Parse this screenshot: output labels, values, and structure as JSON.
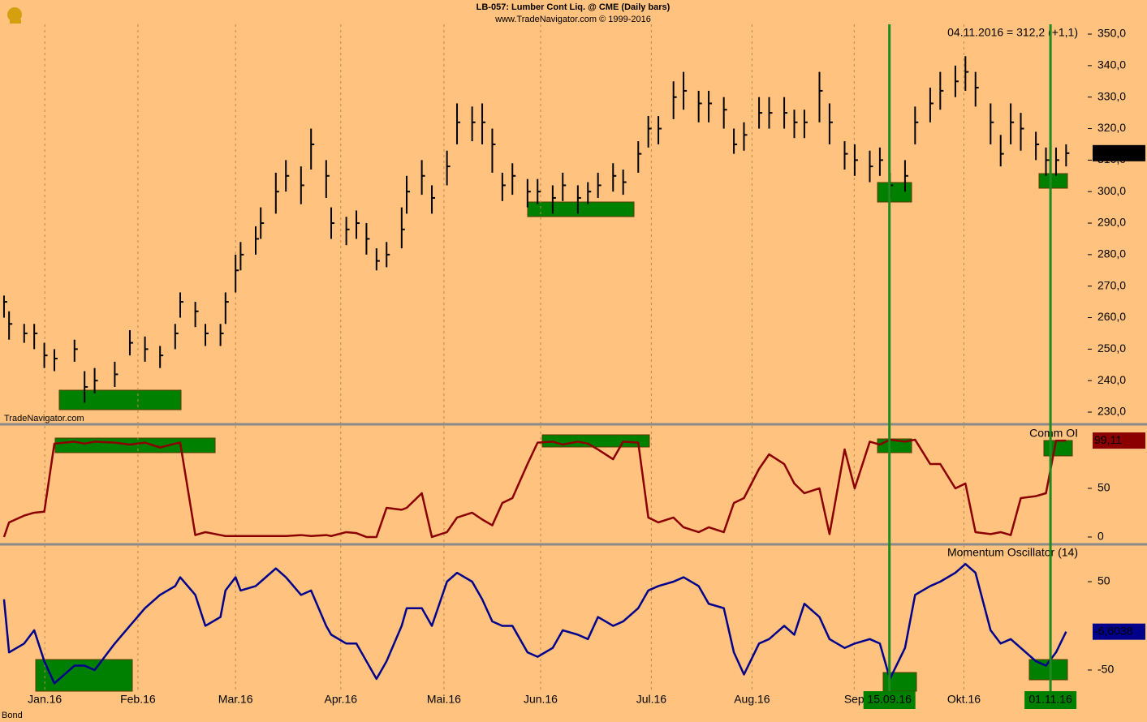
{
  "header": {
    "title": "LB-057:  Lumber Cont Liq. @ CME  (Daily bars)",
    "subtitle": "www.TradeNavigator.com © 1999-2016",
    "source": "TradeNavigator.com",
    "footer": "Bond"
  },
  "chart_data": [
    {
      "type": "ohlc",
      "annotation": "04.11.2016 = 312,2 (+1,1)",
      "color": "#000000",
      "x": [
        1,
        2,
        5,
        7,
        9,
        11,
        15,
        17,
        19,
        23,
        26,
        29,
        32,
        35,
        36,
        39,
        41,
        44,
        45,
        47,
        48,
        51,
        52,
        55,
        57,
        60,
        62,
        65,
        66,
        69,
        71,
        73,
        75,
        77,
        80,
        81,
        84,
        86,
        89,
        91,
        94,
        96,
        98,
        100,
        102,
        105,
        107,
        110,
        112,
        115,
        117,
        119,
        122,
        124,
        127,
        129,
        131,
        134,
        136,
        139,
        141,
        144,
        146,
        148,
        151,
        153,
        156,
        158,
        160,
        163,
        165,
        168,
        170,
        173,
        175,
        177,
        180,
        182,
        185,
        187,
        190,
        192,
        194,
        197,
        199,
        201,
        203,
        206,
        208,
        210,
        212
      ],
      "high": [
        267,
        262,
        258,
        258,
        252,
        250,
        253,
        243,
        244,
        246,
        256,
        254,
        251,
        258,
        268,
        265,
        258,
        258,
        268,
        280,
        284,
        289,
        295,
        306,
        310,
        308,
        320,
        310,
        295,
        292,
        294,
        290,
        282,
        284,
        295,
        305,
        310,
        302,
        313,
        328,
        327,
        328,
        320,
        306,
        309,
        304,
        304,
        302,
        306,
        302,
        303,
        306,
        309,
        307,
        316,
        324,
        324,
        335,
        338,
        332,
        332,
        330,
        320,
        322,
        330,
        330,
        330,
        326,
        326,
        338,
        328,
        316,
        315,
        313,
        314,
        306,
        310,
        327,
        333,
        338,
        340,
        343,
        338,
        328,
        318,
        328,
        325,
        319,
        314,
        314,
        315
      ],
      "low": [
        260,
        253,
        252,
        250,
        244,
        243,
        246,
        233,
        236,
        238,
        248,
        246,
        244,
        250,
        260,
        257,
        251,
        251,
        258,
        268,
        275,
        280,
        285,
        293,
        300,
        296,
        307,
        298,
        285,
        283,
        285,
        280,
        275,
        276,
        282,
        293,
        299,
        293,
        302,
        315,
        316,
        315,
        306,
        297,
        299,
        295,
        296,
        293,
        297,
        293,
        296,
        298,
        300,
        299,
        306,
        314,
        315,
        323,
        326,
        322,
        322,
        320,
        312,
        313,
        320,
        320,
        320,
        317,
        317,
        322,
        315,
        307,
        305,
        303,
        305,
        298,
        300,
        315,
        322,
        326,
        330,
        332,
        327,
        315,
        308,
        315,
        313,
        310,
        305,
        305,
        308
      ],
      "close": [
        265,
        258,
        255,
        255,
        248,
        247,
        250,
        238,
        240,
        242,
        252,
        250,
        248,
        255,
        265,
        262,
        255,
        255,
        265,
        275,
        280,
        285,
        290,
        300,
        305,
        302,
        315,
        305,
        290,
        288,
        290,
        285,
        278,
        280,
        288,
        300,
        305,
        298,
        308,
        322,
        322,
        322,
        315,
        302,
        305,
        300,
        300,
        298,
        302,
        298,
        300,
        302,
        305,
        303,
        312,
        320,
        320,
        330,
        332,
        328,
        328,
        326,
        315,
        318,
        325,
        325,
        325,
        322,
        322,
        332,
        322,
        312,
        310,
        308,
        310,
        302,
        305,
        322,
        328,
        332,
        335,
        338,
        333,
        322,
        312,
        322,
        320,
        315,
        310,
        310,
        312.2
      ],
      "last_label": {
        "value": 312.2,
        "label": "312,2"
      },
      "xlim": [
        0.2,
        216.3
      ],
      "ylim": [
        226.4,
        353.1
      ],
      "yticks": [
        {
          "value": 230,
          "label": "230,0"
        },
        {
          "value": 240,
          "label": "240,0"
        },
        {
          "value": 250,
          "label": "250,0"
        },
        {
          "value": 260,
          "label": "260,0"
        },
        {
          "value": 270,
          "label": "270,0"
        },
        {
          "value": 280,
          "label": "280,0"
        },
        {
          "value": 290,
          "label": "290,0"
        },
        {
          "value": 300,
          "label": "300,0"
        },
        {
          "value": 310,
          "label": "310,0"
        },
        {
          "value": 320,
          "label": "320,0"
        },
        {
          "value": 330,
          "label": "330,0"
        },
        {
          "value": 340,
          "label": "340,0"
        },
        {
          "value": 350,
          "label": "350,0"
        }
      ]
    },
    {
      "type": "line",
      "title": "Comm OI",
      "color": "#8b0000",
      "x": [
        1,
        2,
        5,
        7,
        9,
        11,
        15,
        17,
        19,
        23,
        26,
        29,
        32,
        35,
        36,
        39,
        41,
        44,
        45,
        47,
        48,
        51,
        52,
        55,
        57,
        60,
        62,
        65,
        66,
        69,
        71,
        73,
        75,
        77,
        80,
        81,
        84,
        86,
        89,
        91,
        94,
        96,
        98,
        100,
        102,
        105,
        107,
        110,
        112,
        115,
        117,
        119,
        122,
        124,
        127,
        129,
        131,
        134,
        136,
        139,
        141,
        144,
        146,
        148,
        151,
        153,
        156,
        158,
        160,
        163,
        165,
        168,
        170,
        173,
        175,
        177,
        180,
        182,
        185,
        187,
        190,
        192,
        194,
        197,
        199,
        201,
        203,
        206,
        208,
        210,
        212
      ],
      "values": [
        0,
        15,
        22,
        25,
        26,
        96,
        98,
        96,
        98,
        97,
        95,
        97,
        92,
        96,
        97,
        2,
        5,
        2,
        1,
        1,
        1,
        1,
        1,
        1,
        1,
        2,
        1,
        2,
        1,
        5,
        4,
        0,
        0,
        30,
        28,
        30,
        45,
        0,
        5,
        20,
        25,
        18,
        12,
        35,
        40,
        75,
        97,
        98,
        95,
        98,
        96,
        90,
        80,
        98,
        97,
        20,
        15,
        20,
        10,
        5,
        10,
        5,
        35,
        40,
        70,
        85,
        75,
        55,
        45,
        50,
        3,
        90,
        50,
        98,
        95,
        100,
        98,
        100,
        75,
        75,
        50,
        55,
        5,
        3,
        5,
        2,
        40,
        42,
        45,
        99,
        99.11
      ],
      "last_label": {
        "value": 99.11,
        "label": "99,11"
      },
      "xlim": [
        0.2,
        216.3
      ],
      "ylim": [
        -6.7,
        114.2
      ],
      "yticks": [
        0,
        50
      ]
    },
    {
      "type": "line",
      "title": "Momentum Oscillator (14)",
      "color": "#00008b",
      "x": [
        1,
        2,
        5,
        7,
        9,
        11,
        15,
        17,
        19,
        23,
        26,
        29,
        32,
        35,
        36,
        39,
        41,
        44,
        45,
        47,
        48,
        51,
        52,
        55,
        57,
        60,
        62,
        65,
        66,
        69,
        71,
        73,
        75,
        77,
        80,
        81,
        84,
        86,
        89,
        91,
        94,
        96,
        98,
        100,
        102,
        105,
        107,
        110,
        112,
        115,
        117,
        119,
        122,
        124,
        127,
        129,
        131,
        134,
        136,
        139,
        141,
        144,
        146,
        148,
        151,
        153,
        156,
        158,
        160,
        163,
        165,
        168,
        170,
        173,
        175,
        177,
        180,
        182,
        185,
        187,
        190,
        192,
        194,
        197,
        199,
        201,
        203,
        206,
        208,
        210,
        212
      ],
      "values": [
        30,
        -30,
        -20,
        -5,
        -40,
        -65,
        -45,
        -45,
        -50,
        -20,
        0,
        20,
        35,
        45,
        55,
        35,
        0,
        10,
        40,
        55,
        40,
        45,
        50,
        65,
        55,
        35,
        40,
        0,
        -10,
        -20,
        -20,
        -40,
        -60,
        -40,
        0,
        20,
        20,
        0,
        50,
        60,
        50,
        30,
        5,
        0,
        0,
        -30,
        -35,
        -25,
        -5,
        -10,
        -15,
        10,
        0,
        5,
        20,
        40,
        45,
        50,
        55,
        45,
        25,
        20,
        -30,
        -55,
        -20,
        -15,
        0,
        -10,
        25,
        10,
        -15,
        -25,
        -20,
        -15,
        -20,
        -60,
        -25,
        35,
        45,
        50,
        60,
        70,
        60,
        -5,
        -20,
        -15,
        -25,
        -40,
        -45,
        -30,
        -6.6038
      ],
      "last_label": {
        "value": -6.6038,
        "label": "-6,6038"
      },
      "xlim": [
        0.2,
        216.3
      ],
      "ylim": [
        -73.9,
        91.3
      ],
      "yticks": [
        -50,
        50
      ],
      "xticks": [
        {
          "value": 9.1,
          "label": "Jan.16"
        },
        {
          "value": 27.6,
          "label": "Feb.16"
        },
        {
          "value": 47,
          "label": "Mar.16"
        },
        {
          "value": 67.9,
          "label": "Apr.16"
        },
        {
          "value": 88.4,
          "label": "Mai.16"
        },
        {
          "value": 107.6,
          "label": "Jun.16"
        },
        {
          "value": 129.6,
          "label": "Jul.16"
        },
        {
          "value": 149.6,
          "label": "Aug.16"
        },
        {
          "value": 169.9,
          "label": "Sep"
        },
        {
          "value": 191.7,
          "label": "Okt.16"
        }
      ],
      "markers": [
        {
          "x": 176.9,
          "label": "15.09.16"
        },
        {
          "x": 208.9,
          "label": "01.11.16"
        }
      ]
    }
  ]
}
